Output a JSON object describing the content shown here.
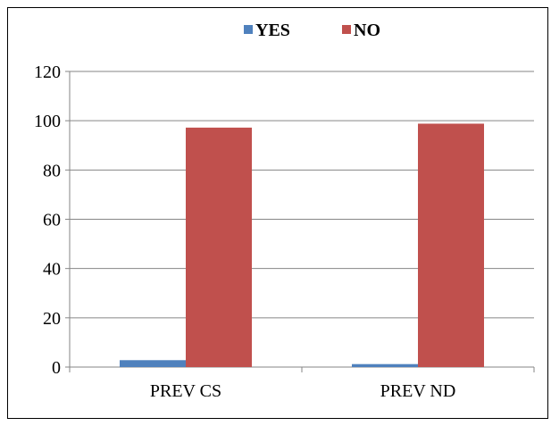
{
  "chart_data": {
    "type": "bar",
    "categories": [
      "PREV CS",
      "PREV ND"
    ],
    "series": [
      {
        "name": "YES",
        "values": [
          2.8,
          1.2
        ],
        "color": "#4F81BD"
      },
      {
        "name": "NO",
        "values": [
          97.2,
          98.8
        ],
        "color": "#C0504D"
      }
    ],
    "ylim": [
      0,
      120
    ],
    "yticks": [
      0,
      20,
      40,
      60,
      80,
      100,
      120
    ],
    "grid": true,
    "legend_position": "top",
    "title": "",
    "xlabel": "",
    "ylabel": ""
  }
}
